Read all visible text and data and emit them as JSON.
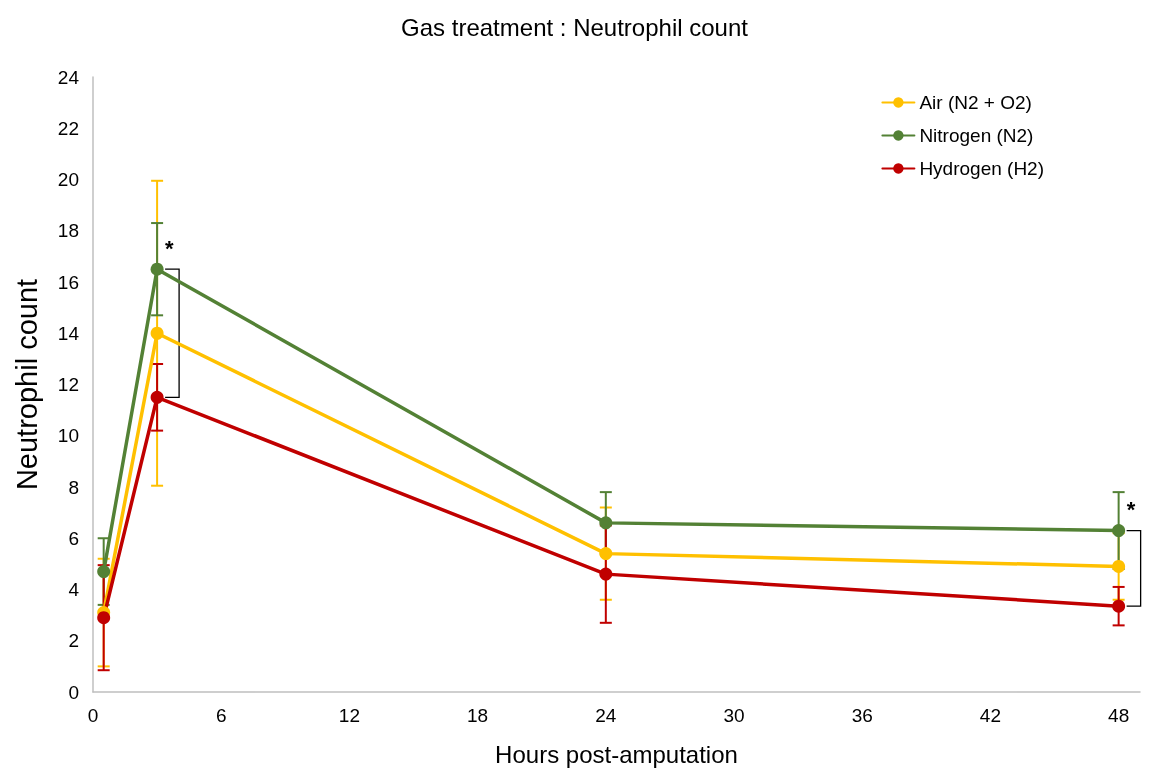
{
  "chart_data": {
    "type": "line",
    "title": "Gas treatment : Neutrophil count",
    "xlabel": "Hours post-amputation",
    "ylabel": "Neutrophil count",
    "x": [
      0.5,
      3,
      24,
      48
    ],
    "series": [
      {
        "name": "Air (N2 + O2)",
        "color": "#ffc000",
        "values": [
          3.1,
          14.0,
          5.4,
          4.9
        ],
        "errors": [
          2.1,
          5.95,
          1.8,
          1.3
        ]
      },
      {
        "name": "Nitrogen (N2)",
        "color": "#538135",
        "values": [
          4.7,
          16.5,
          6.6,
          6.3
        ],
        "errors": [
          1.3,
          1.8,
          1.2,
          1.5
        ]
      },
      {
        "name": "Hydrogen (H2)",
        "color": "#c00000",
        "values": [
          2.9,
          11.5,
          4.6,
          3.35
        ],
        "errors": [
          2.05,
          1.3,
          1.9,
          0.75
        ]
      }
    ],
    "xlim": [
      0,
      49
    ],
    "xticks": [
      0,
      6,
      12,
      18,
      24,
      30,
      36,
      42,
      48
    ],
    "ylim": [
      0,
      24
    ],
    "yticks": [
      0,
      2,
      4,
      6,
      8,
      10,
      12,
      14,
      16,
      18,
      20,
      22,
      24
    ],
    "grid": false,
    "legend": "top right",
    "marker": "circle",
    "line_style": "solid",
    "annotations": [
      {
        "text": "*",
        "x": 3,
        "y": 16.5
      },
      {
        "text": "*",
        "x": 48,
        "y": 6.3
      }
    ]
  }
}
